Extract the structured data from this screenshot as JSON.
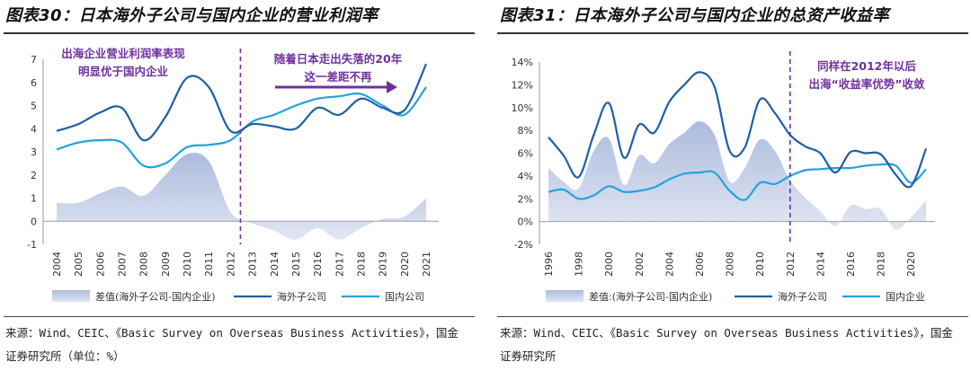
{
  "chart_data": [
    {
      "type": "line",
      "title": "图表30：日本海外子公司与国内企业的营业利润率",
      "categories": [
        "2004",
        "2005",
        "2006",
        "2007",
        "2008",
        "2009",
        "2010",
        "2011",
        "2012",
        "2013",
        "2014",
        "2015",
        "2016",
        "2017",
        "2018",
        "2019",
        "2020",
        "2021"
      ],
      "ylim": [
        -1,
        7
      ],
      "yticks": [
        "-1",
        "0",
        "1",
        "2",
        "3",
        "4",
        "5",
        "6",
        "7"
      ],
      "series": [
        {
          "name": "差值(海外子公司-国内企业)",
          "kind": "area",
          "color": "#a8b8db",
          "values": [
            0.8,
            0.8,
            1.2,
            1.5,
            1.1,
            2.0,
            2.9,
            2.6,
            0.4,
            -0.1,
            -0.4,
            -0.8,
            -0.3,
            -0.8,
            -0.3,
            0.1,
            0.2,
            1.0
          ]
        },
        {
          "name": "海外子公司",
          "kind": "line",
          "color": "#1f5fa5",
          "values": [
            3.9,
            4.2,
            4.7,
            4.9,
            3.5,
            4.5,
            6.2,
            5.8,
            3.9,
            4.2,
            4.1,
            4.0,
            4.9,
            4.6,
            5.3,
            4.9,
            4.8,
            6.8
          ]
        },
        {
          "name": "国内公司",
          "kind": "line",
          "color": "#23a3dd",
          "values": [
            3.1,
            3.4,
            3.5,
            3.4,
            2.4,
            2.5,
            3.2,
            3.3,
            3.5,
            4.3,
            4.6,
            5.0,
            5.3,
            5.4,
            5.5,
            5.0,
            4.6,
            5.8
          ]
        }
      ],
      "annotations": [
        "出海企业营业利润率表现",
        "明显优于国内企业",
        "随着日本走出失落的20年",
        "这一差距不再"
      ],
      "divider_after": "2012"
    },
    {
      "type": "line",
      "title": "图表31：日本海外子公司与国内企业的总资产收益率",
      "categories": [
        "1996",
        "1997",
        "1998",
        "1999",
        "2000",
        "2001",
        "2002",
        "2003",
        "2004",
        "2005",
        "2006",
        "2007",
        "2008",
        "2009",
        "2010",
        "2011",
        "2012",
        "2013",
        "2014",
        "2015",
        "2016",
        "2017",
        "2018",
        "2019",
        "2020",
        "2021"
      ],
      "xticks": [
        "1996",
        "1998",
        "2000",
        "2002",
        "2004",
        "2006",
        "2008",
        "2010",
        "2012",
        "2014",
        "2016",
        "2018",
        "2020"
      ],
      "ylim": [
        -2,
        14
      ],
      "yticks": [
        "-2%",
        "0%",
        "2%",
        "4%",
        "6%",
        "8%",
        "10%",
        "12%",
        "14%"
      ],
      "series": [
        {
          "name": "差值:(海外子公司-国内企业)",
          "kind": "area",
          "color": "#a8b8db",
          "values": [
            4.7,
            3.5,
            2.9,
            6.2,
            7.3,
            3.2,
            5.8,
            5.1,
            6.8,
            7.8,
            8.8,
            7.6,
            3.5,
            4.7,
            7.2,
            6.2,
            3.6,
            2.1,
            0.9,
            -0.4,
            1.4,
            1.1,
            1.1,
            -0.7,
            0.4,
            1.8
          ]
        },
        {
          "name": "海外子公司",
          "kind": "line",
          "color": "#1f5fa5",
          "values": [
            7.4,
            5.8,
            3.9,
            7.6,
            10.4,
            5.6,
            8.5,
            7.8,
            10.5,
            12.0,
            13.1,
            11.8,
            6.2,
            6.5,
            10.7,
            9.5,
            7.6,
            6.6,
            6.0,
            4.3,
            6.1,
            6.0,
            5.9,
            4.1,
            3.1,
            6.4
          ]
        },
        {
          "name": "国内企业",
          "kind": "line",
          "color": "#23a3dd",
          "values": [
            2.6,
            2.8,
            2.0,
            2.3,
            3.1,
            2.6,
            2.7,
            3.0,
            3.7,
            4.2,
            4.3,
            4.3,
            2.7,
            1.9,
            3.4,
            3.3,
            4.0,
            4.5,
            4.6,
            4.7,
            4.7,
            4.9,
            5.0,
            4.9,
            3.4,
            4.6
          ]
        }
      ],
      "annotations": [
        "同样在2012年以后",
        "出海“收益率优势”收敛"
      ],
      "divider_after": "2012"
    }
  ],
  "sources": {
    "left_line1": "来源：Wind、CEIC、《Basic Survey on Overseas Business Activities》，国金",
    "left_line2": "证券研究所（单位：%）",
    "right_line1": "来源：Wind、CEIC、《Basic Survey on Overseas Business Activities》，国金",
    "right_line2": "证券研究所"
  },
  "colors": {
    "area": "#a8b8db",
    "overseas": "#1f5fa5",
    "domestic": "#23a3dd",
    "annotation": "#7030a0"
  }
}
